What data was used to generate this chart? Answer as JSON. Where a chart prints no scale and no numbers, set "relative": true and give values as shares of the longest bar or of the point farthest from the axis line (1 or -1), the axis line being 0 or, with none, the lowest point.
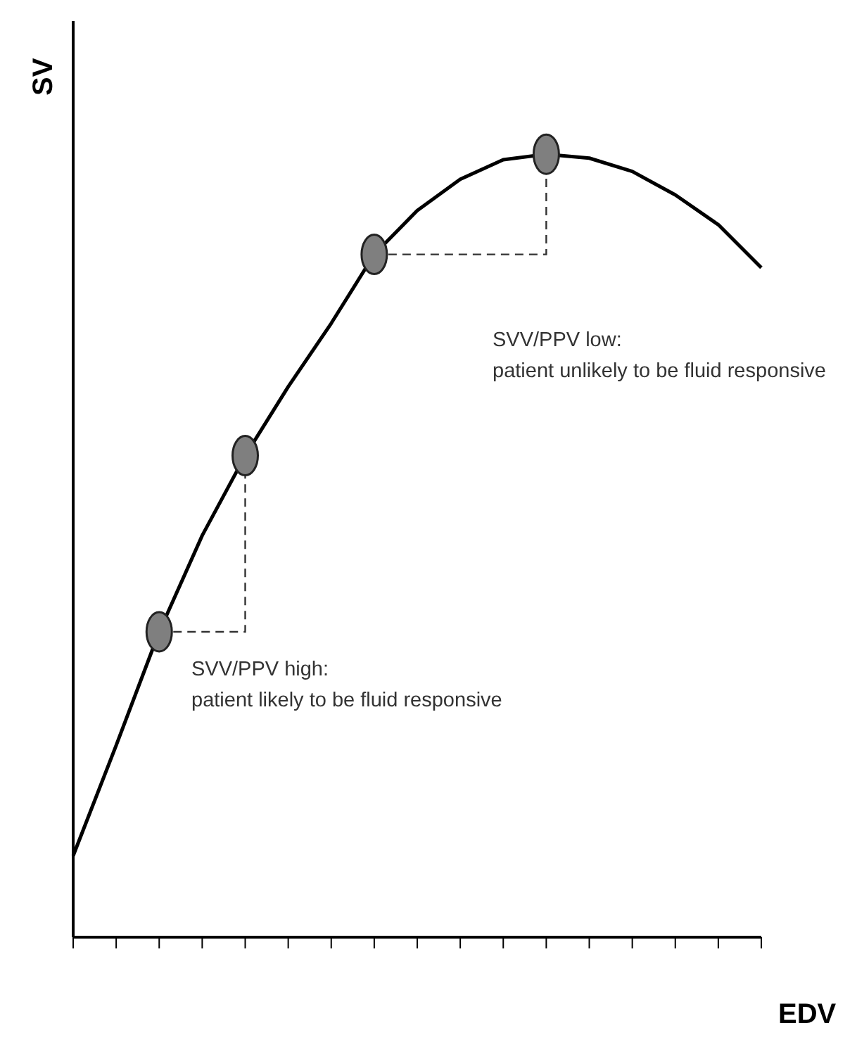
{
  "chart_data": {
    "type": "line",
    "relative": true,
    "xlabel": "EDV",
    "ylabel": "SV",
    "categories": [
      null,
      null,
      null,
      null,
      null,
      null,
      null,
      null,
      null,
      null,
      null,
      null,
      null,
      null,
      null,
      null,
      null
    ],
    "series": [
      {
        "color": "#000000",
        "values": [
          0.104,
          0.245,
          0.39,
          0.513,
          0.615,
          0.703,
          0.784,
          0.872,
          0.928,
          0.968,
          0.993,
          1,
          0.995,
          0.978,
          0.948,
          0.91,
          0.855
        ]
      }
    ],
    "annotations": [
      "SVV/PPV high:",
      "patient likely to be fluid responsive",
      "SVV/PPV low:",
      "patient unlikely to be fluid responsive"
    ]
  }
}
